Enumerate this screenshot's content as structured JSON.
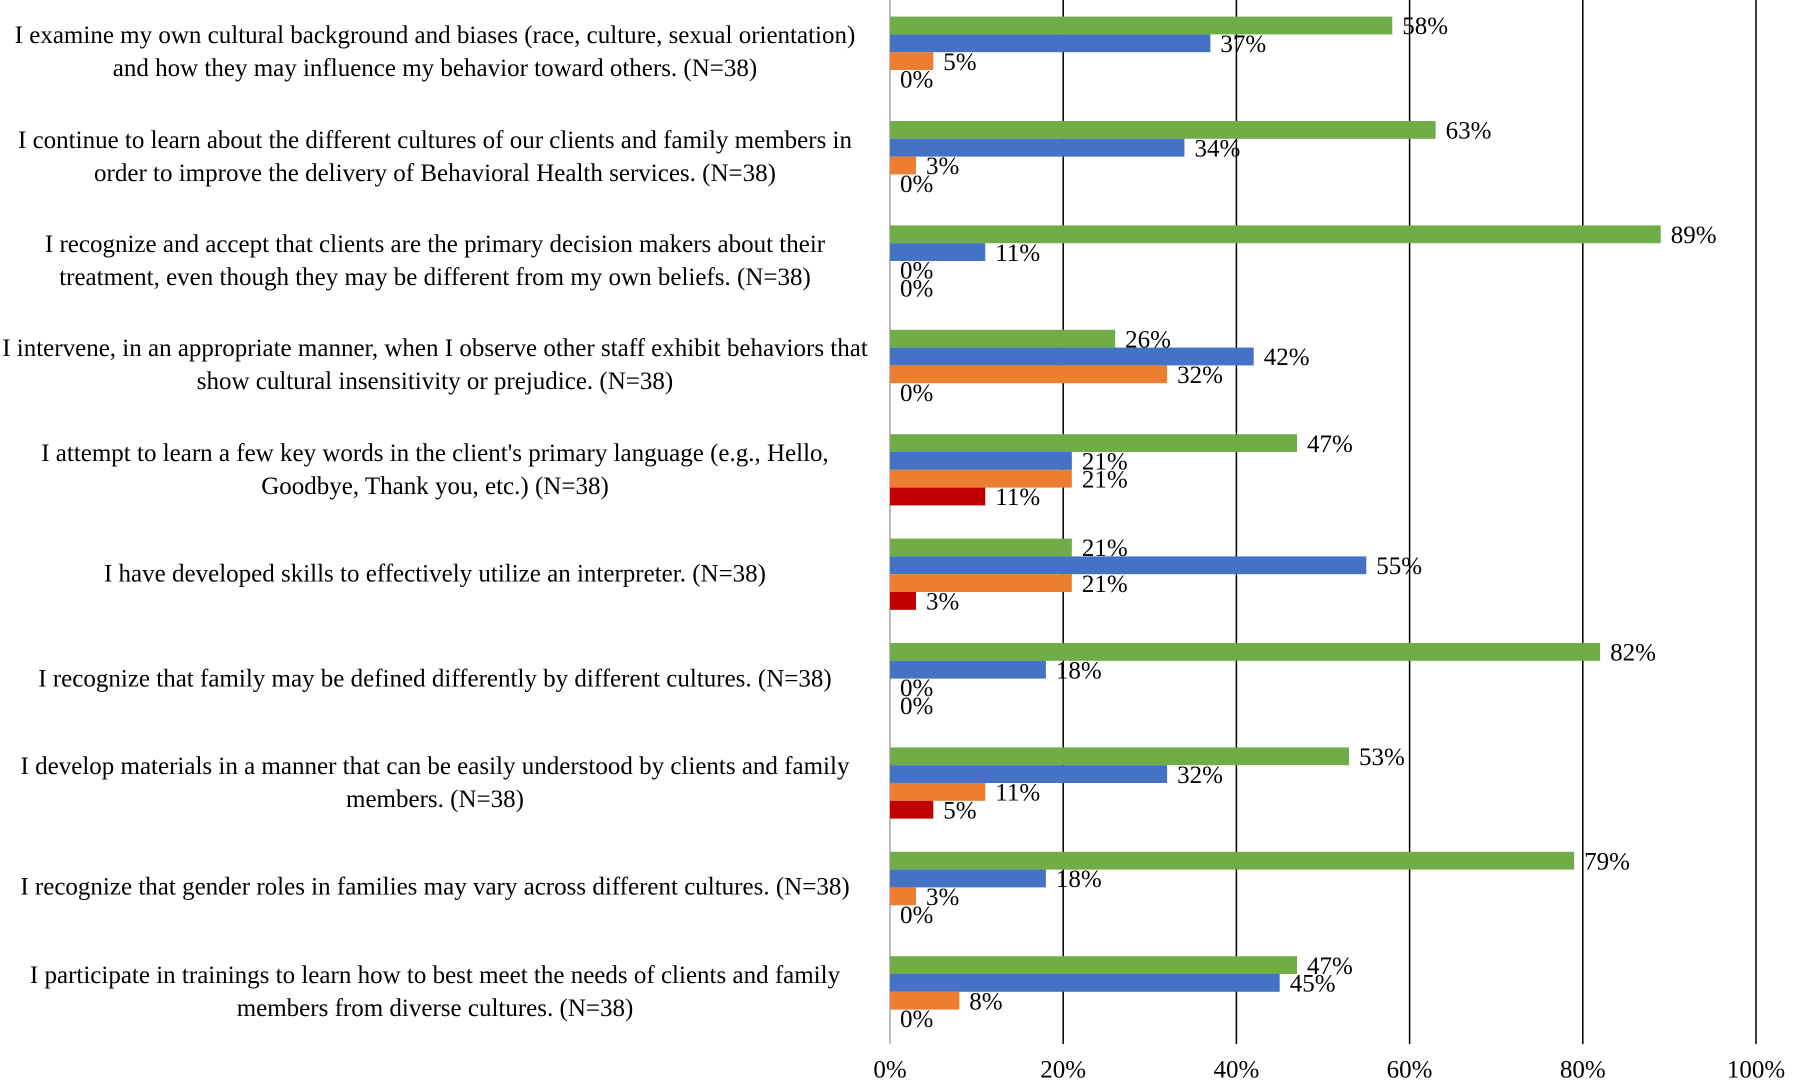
{
  "chart_data": {
    "type": "hbar",
    "categories": [
      "I examine my own cultural background and biases (race, culture, sexual orientation) and how they may influence my behavior toward others. (N=38)",
      "I continue to learn about the different cultures of our clients and family members in order to improve the delivery of Behavioral Health services. (N=38)",
      "I recognize and accept that clients are the primary decision makers about their treatment, even though they may be different from my own beliefs. (N=38)",
      "I intervene, in an appropriate manner, when I observe other staff exhibit behaviors that show cultural insensitivity or prejudice. (N=38)",
      "I attempt to learn a few key words in the client's primary language (e.g., Hello, Goodbye, Thank you, etc.) (N=38)",
      "I have developed skills to effectively utilize an interpreter. (N=38)",
      "I recognize that family may be defined differently by different cultures. (N=38)",
      "I develop materials in a manner that can be easily understood by clients and family members. (N=38)",
      "I recognize that gender roles in families may vary across different cultures. (N=38)",
      "I participate in trainings to learn how to best meet the needs of clients and family members from diverse cultures. (N=38)"
    ],
    "series": [
      {
        "color": "#70ad47",
        "values": [
          58,
          63,
          89,
          26,
          47,
          21,
          82,
          53,
          79,
          47
        ],
        "value_labels": [
          "58%",
          "63%",
          "89%",
          "26%",
          "47%",
          "21%",
          "82%",
          "53%",
          "79%",
          "47%"
        ]
      },
      {
        "color": "#4472c4",
        "values": [
          37,
          34,
          11,
          42,
          21,
          55,
          18,
          32,
          18,
          45
        ],
        "value_labels": [
          "37%",
          "34%",
          "11%",
          "42%",
          "21%",
          "55%",
          "18%",
          "32%",
          "18%",
          "45%"
        ]
      },
      {
        "color": "#ed7d31",
        "values": [
          5,
          3,
          0,
          32,
          21,
          21,
          0,
          11,
          3,
          8
        ],
        "value_labels": [
          "5%",
          "3%",
          "0%",
          "32%",
          "21%",
          "21%",
          "0%",
          "11%",
          "3%",
          "8%"
        ]
      },
      {
        "color": "#c00000",
        "values": [
          0,
          0,
          0,
          0,
          11,
          3,
          0,
          5,
          0,
          0
        ],
        "value_labels": [
          "0%",
          "0%",
          "0%",
          "0%",
          "11%",
          "3%",
          "0%",
          "5%",
          "0%",
          "0%"
        ]
      }
    ],
    "xlim": [
      0,
      100
    ],
    "xticks": [
      {
        "value": 0,
        "label": "0%"
      },
      {
        "value": 20,
        "label": "20%"
      },
      {
        "value": 40,
        "label": "40%"
      },
      {
        "value": 60,
        "label": "60%"
      },
      {
        "value": 80,
        "label": "80%"
      },
      {
        "value": 100,
        "label": "100%"
      }
    ],
    "grid": true
  }
}
